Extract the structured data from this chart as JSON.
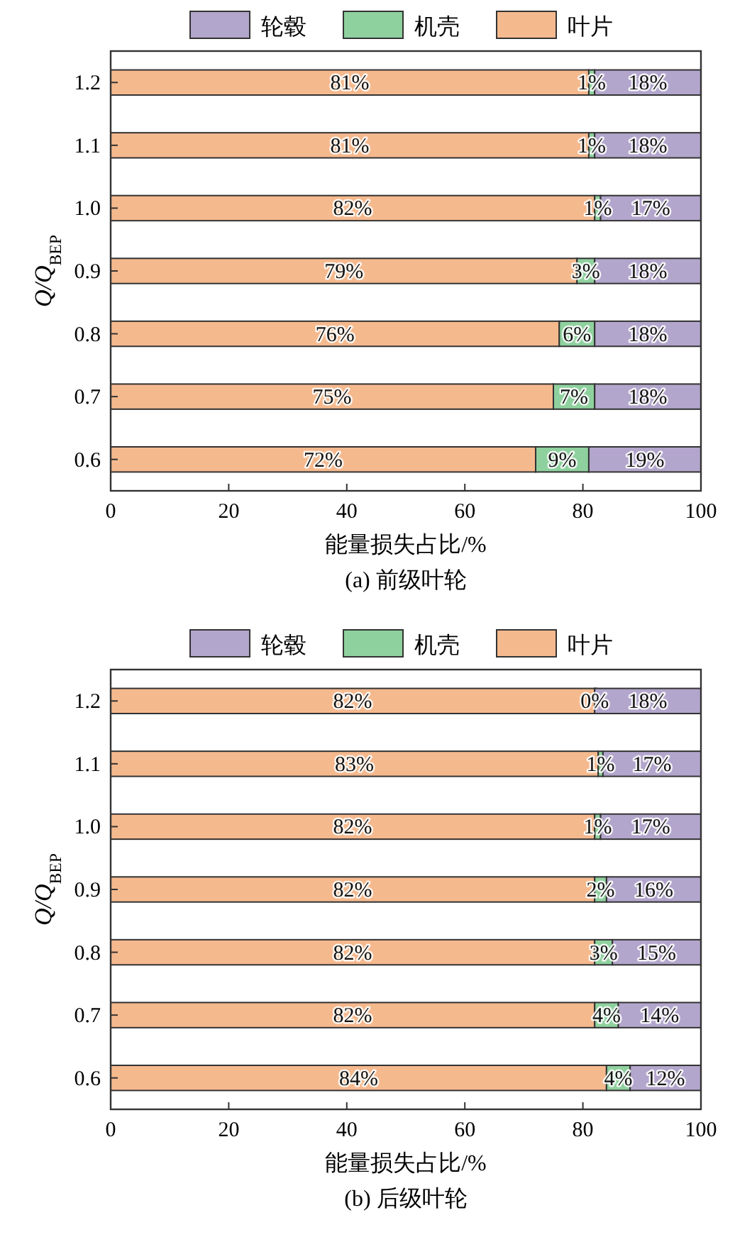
{
  "chart_data": [
    {
      "type": "bar",
      "orientation": "horizontal",
      "stacked": true,
      "title": "(a) 前级叶轮",
      "xlabel": "能量损失占比/%",
      "ylabel": "Q/Q$_{BEP}$",
      "categories": [
        "1.2",
        "1.1",
        "1.0",
        "0.9",
        "0.8",
        "0.7",
        "0.6"
      ],
      "series": [
        {
          "name": "叶片",
          "color": "#f5b98e",
          "values": [
            81,
            81,
            82,
            79,
            76,
            75,
            72
          ],
          "value_labels": [
            "81%",
            "81%",
            "82%",
            "79%",
            "76%",
            "75%",
            "72%"
          ]
        },
        {
          "name": "机壳",
          "color": "#8fd19e",
          "values": [
            1,
            1,
            1,
            3,
            6,
            7,
            9
          ],
          "value_labels": [
            "1%",
            "1%",
            "1%",
            "3%",
            "6%",
            "7%",
            "9%"
          ]
        },
        {
          "name": "轮毂",
          "color": "#b3a6cc",
          "values": [
            18,
            18,
            17,
            18,
            18,
            18,
            19
          ],
          "value_labels": [
            "18%",
            "18%",
            "17%",
            "18%",
            "18%",
            "18%",
            "19%"
          ]
        }
      ],
      "xlim": [
        0,
        100
      ],
      "xticks": [
        0,
        20,
        40,
        60,
        80,
        100
      ],
      "legend": "top",
      "grid": false
    },
    {
      "type": "bar",
      "orientation": "horizontal",
      "stacked": true,
      "title": "(b) 后级叶轮",
      "xlabel": "能量损失占比/%",
      "ylabel": "Q/Q$_{BEP}$",
      "categories": [
        "1.2",
        "1.1",
        "1.0",
        "0.9",
        "0.8",
        "0.7",
        "0.6"
      ],
      "series": [
        {
          "name": "叶片",
          "color": "#f5b98e",
          "values": [
            82,
            82.6,
            82,
            82,
            82,
            82,
            84
          ],
          "value_labels": [
            "82%",
            "83%",
            "82%",
            "82%",
            "82%",
            "82%",
            "84%"
          ]
        },
        {
          "name": "机壳",
          "color": "#8fd19e",
          "values": [
            0,
            0.8,
            1,
            2,
            3,
            4,
            4
          ],
          "value_labels": [
            "0%",
            "1%",
            "1%",
            "2%",
            "3%",
            "4%",
            "4%"
          ]
        },
        {
          "name": "轮毂",
          "color": "#b3a6cc",
          "values": [
            18,
            16.6,
            17,
            16,
            15,
            14,
            12
          ],
          "value_labels": [
            "18%",
            "17%",
            "17%",
            "16%",
            "15%",
            "14%",
            "12%"
          ]
        }
      ],
      "xlim": [
        0,
        100
      ],
      "xticks": [
        0,
        20,
        40,
        60,
        80,
        100
      ],
      "legend": "top",
      "grid": false
    }
  ]
}
